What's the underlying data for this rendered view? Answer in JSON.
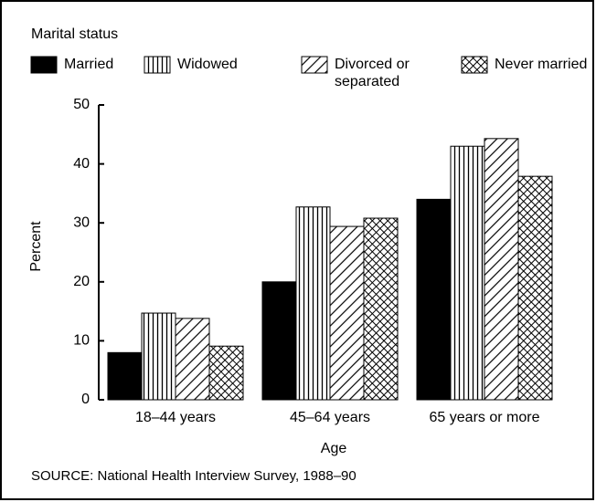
{
  "chart_data": {
    "type": "bar",
    "legend_title": "Marital status",
    "categories": [
      "18–44 years",
      "45–64 years",
      "65 years or more"
    ],
    "series": [
      {
        "name": "Married",
        "color": "#000000",
        "pattern": "solid",
        "values": [
          8,
          20,
          34
        ]
      },
      {
        "name": "Widowed",
        "color": "#000000",
        "pattern": "vertical",
        "values": [
          14.7,
          32.7,
          43
        ]
      },
      {
        "name": "Divorced or separated",
        "color": "#000000",
        "pattern": "diagonal",
        "values": [
          13.8,
          29.4,
          44.3
        ]
      },
      {
        "name": "Never married",
        "color": "#000000",
        "pattern": "crosshatch",
        "values": [
          9.1,
          30.8,
          37.9
        ]
      }
    ],
    "ylabel": "Percent",
    "xlabel": "Age",
    "ylim": [
      0,
      50
    ],
    "yticks": [
      0,
      10,
      20,
      30,
      40,
      50
    ],
    "source": "SOURCE: National Health Interview Survey, 1988–90"
  }
}
